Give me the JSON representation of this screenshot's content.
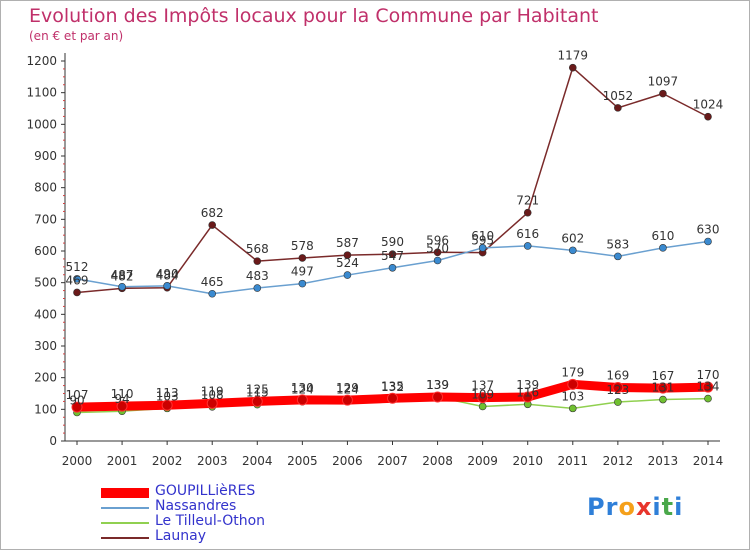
{
  "title": "Evolution des Impôts locaux pour la Commune par Habitant",
  "subtitle": "(en € et par an)",
  "logo": {
    "text": "Proxiti",
    "letters": [
      {
        "ch": "P",
        "color": "#2f7fd8"
      },
      {
        "ch": "r",
        "color": "#2f7fd8"
      },
      {
        "ch": "o",
        "color": "#f5a01a"
      },
      {
        "ch": "x",
        "color": "#e8352c"
      },
      {
        "ch": "i",
        "color": "#2f7fd8"
      },
      {
        "ch": "t",
        "color": "#4aa84a"
      },
      {
        "ch": "i",
        "color": "#2f7fd8"
      }
    ]
  },
  "chart_data": {
    "type": "line",
    "title": "Evolution des Impôts locaux pour la Commune par Habitant",
    "subtitle": "(en € et par an)",
    "x": [
      2000,
      2001,
      2002,
      2003,
      2004,
      2005,
      2006,
      2007,
      2008,
      2009,
      2010,
      2011,
      2012,
      2013,
      2014
    ],
    "ylim": [
      0,
      1200
    ],
    "yticks": [
      0,
      100,
      200,
      300,
      400,
      500,
      600,
      700,
      800,
      900,
      1000,
      1100,
      1200
    ],
    "grid": false,
    "legend_position": "bottom-left",
    "series": [
      {
        "name": "GOUPILLièRES",
        "color": "#ff0000",
        "marker": "#cc0000",
        "width": 9,
        "values": [
          107,
          110,
          113,
          119,
          125,
          130,
          129,
          135,
          139,
          137,
          139,
          179,
          169,
          167,
          170
        ],
        "labels": [
          "107",
          "110",
          "113",
          "119",
          "125",
          "130",
          "129",
          "135",
          "139",
          "137",
          "139",
          "179",
          "169",
          "167",
          "170"
        ]
      },
      {
        "name": "Nassandres",
        "color": "#6aa0d0",
        "marker": "#3a8ad0",
        "width": 1.5,
        "values": [
          512,
          487,
          490,
          465,
          483,
          497,
          524,
          547,
          570,
          610,
          616,
          602,
          583,
          610,
          630
        ],
        "labels": [
          "512",
          "487",
          "490",
          "465",
          "483",
          "497",
          "524",
          "547",
          "570",
          "610",
          "616",
          "602",
          "583",
          "610",
          "630"
        ]
      },
      {
        "name": "Le Tilleul-Othon",
        "color": "#90d050",
        "marker": "#70c030",
        "width": 1.5,
        "values": [
          90,
          94,
          103,
          108,
          115,
          124,
          124,
          132,
          139,
          109,
          116,
          103,
          123,
          131,
          134
        ],
        "labels": [
          "90",
          "94",
          "103",
          "108",
          "115",
          "124",
          "124",
          "132",
          "139",
          "109",
          "116",
          "103",
          "123",
          "131",
          "134"
        ]
      },
      {
        "name": "Launay",
        "color": "#7a2a2a",
        "marker": "#6a1a1a",
        "width": 1.5,
        "values": [
          469,
          482,
          484,
          682,
          568,
          578,
          587,
          590,
          596,
          595,
          721,
          1179,
          1052,
          1097,
          1024
        ],
        "labels": [
          "469",
          "482",
          "484",
          "682",
          "568",
          "578",
          "587",
          "590",
          "596",
          "595",
          "721",
          "1179",
          "1052",
          "1097",
          "1024"
        ]
      }
    ]
  }
}
